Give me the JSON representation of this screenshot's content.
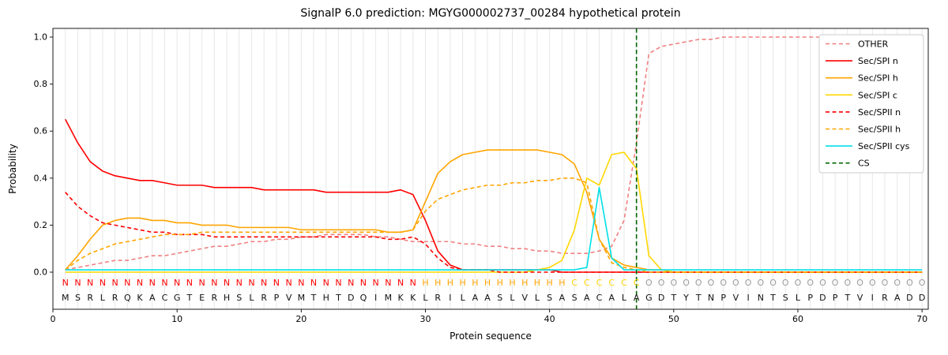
{
  "chart_data": {
    "type": "line",
    "title": "SignalP 6.0 prediction: MGYG000002737_00284 hypothetical protein",
    "xlabel": "Protein sequence",
    "ylabel": "Probability",
    "xlim": [
      0,
      70.5
    ],
    "ylim": [
      -0.16,
      1.04
    ],
    "x_start": 1,
    "x_ticks": [
      0,
      10,
      20,
      30,
      40,
      50,
      60,
      70
    ],
    "y_tick_labels": [
      "0.0",
      "0.2",
      "0.4",
      "0.6",
      "0.8",
      "1.0"
    ],
    "grid": "vertical-per-residue",
    "grid_color": "#e7e7e7",
    "legend_position": "upper right",
    "sequence": "MSRLRQKACGTERHSLRPVMTHTDQIMKKLRILAASLVLSASACALAGDTYTNPVINTSLPDPTVIRADD",
    "regions": "NNNNNNNNNNNNNNNNNNNNNNNNNNNNNHHHHHHHHHHHHCCCCCCOOOOOOOOOOOOOOOOOOOOOOO",
    "region_colors": {
      "N": "#ff0000",
      "H": "#ffa500",
      "C": "#ffd700",
      "O": "#9c9c9c"
    },
    "cs": {
      "label": "CS",
      "position": 47,
      "color": "#006400"
    },
    "series": [
      {
        "name": "OTHER",
        "color": "#f08080",
        "dash": true,
        "values": [
          0.01,
          0.02,
          0.03,
          0.04,
          0.05,
          0.05,
          0.06,
          0.07,
          0.07,
          0.08,
          0.09,
          0.1,
          0.11,
          0.11,
          0.12,
          0.13,
          0.13,
          0.14,
          0.14,
          0.15,
          0.15,
          0.16,
          0.16,
          0.16,
          0.16,
          0.15,
          0.15,
          0.14,
          0.13,
          0.13,
          0.13,
          0.13,
          0.12,
          0.12,
          0.11,
          0.11,
          0.1,
          0.1,
          0.09,
          0.09,
          0.08,
          0.08,
          0.08,
          0.09,
          0.11,
          0.22,
          0.55,
          0.93,
          0.96,
          0.97,
          0.98,
          0.99,
          0.99,
          1.0,
          1.0,
          1.0,
          1.0,
          1.0,
          1.0,
          1.0,
          1.0,
          1.0,
          1.0,
          1.0,
          1.0,
          1.0,
          1.0,
          1.0,
          1.0,
          1.0
        ]
      },
      {
        "name": "Sec/SPI n",
        "color": "#ff0000",
        "dash": false,
        "values": [
          0.65,
          0.55,
          0.47,
          0.43,
          0.41,
          0.4,
          0.39,
          0.39,
          0.38,
          0.37,
          0.37,
          0.37,
          0.36,
          0.36,
          0.36,
          0.36,
          0.35,
          0.35,
          0.35,
          0.35,
          0.35,
          0.34,
          0.34,
          0.34,
          0.34,
          0.34,
          0.34,
          0.35,
          0.33,
          0.22,
          0.09,
          0.03,
          0.01,
          0.01,
          0.01,
          0.01,
          0.01,
          0.01,
          0.01,
          0.01,
          0.0,
          0.0,
          0.0,
          0.0,
          0.0,
          0.0,
          0.0,
          0.0,
          0.0,
          0.0,
          0.0,
          0.0,
          0.0,
          0.0,
          0.0,
          0.0,
          0.0,
          0.0,
          0.0,
          0.0,
          0.0,
          0.0,
          0.0,
          0.0,
          0.0,
          0.0,
          0.0,
          0.0,
          0.0,
          0.0
        ]
      },
      {
        "name": "Sec/SPI h",
        "color": "#ffa500",
        "dash": false,
        "values": [
          0.01,
          0.07,
          0.14,
          0.2,
          0.22,
          0.23,
          0.23,
          0.22,
          0.22,
          0.21,
          0.21,
          0.2,
          0.2,
          0.2,
          0.19,
          0.19,
          0.19,
          0.19,
          0.19,
          0.18,
          0.18,
          0.18,
          0.18,
          0.18,
          0.18,
          0.18,
          0.17,
          0.17,
          0.18,
          0.3,
          0.42,
          0.47,
          0.5,
          0.51,
          0.52,
          0.52,
          0.52,
          0.52,
          0.52,
          0.51,
          0.5,
          0.46,
          0.34,
          0.14,
          0.06,
          0.03,
          0.02,
          0.01,
          0.01,
          0.0,
          0.0,
          0.0,
          0.0,
          0.0,
          0.0,
          0.0,
          0.0,
          0.0,
          0.0,
          0.0,
          0.0,
          0.0,
          0.0,
          0.0,
          0.0,
          0.0,
          0.0,
          0.0,
          0.0,
          0.0
        ]
      },
      {
        "name": "Sec/SPI c",
        "color": "#ffd700",
        "dash": false,
        "values": [
          0.0,
          0.0,
          0.0,
          0.0,
          0.0,
          0.0,
          0.0,
          0.0,
          0.0,
          0.0,
          0.0,
          0.0,
          0.0,
          0.0,
          0.0,
          0.0,
          0.0,
          0.0,
          0.0,
          0.0,
          0.0,
          0.0,
          0.0,
          0.0,
          0.0,
          0.0,
          0.0,
          0.0,
          0.0,
          0.0,
          0.0,
          0.0,
          0.0,
          0.0,
          0.0,
          0.0,
          0.0,
          0.0,
          0.01,
          0.02,
          0.05,
          0.18,
          0.4,
          0.37,
          0.5,
          0.51,
          0.44,
          0.07,
          0.01,
          0.0,
          0.0,
          0.0,
          0.0,
          0.0,
          0.0,
          0.0,
          0.0,
          0.0,
          0.0,
          0.0,
          0.0,
          0.0,
          0.0,
          0.0,
          0.0,
          0.0,
          0.0,
          0.0,
          0.0,
          0.0
        ]
      },
      {
        "name": "Sec/SPII n",
        "color": "#ff0000",
        "dash": true,
        "values": [
          0.34,
          0.28,
          0.24,
          0.21,
          0.2,
          0.19,
          0.18,
          0.17,
          0.17,
          0.16,
          0.16,
          0.16,
          0.15,
          0.15,
          0.15,
          0.15,
          0.15,
          0.15,
          0.15,
          0.15,
          0.15,
          0.15,
          0.15,
          0.15,
          0.15,
          0.15,
          0.14,
          0.14,
          0.15,
          0.12,
          0.06,
          0.02,
          0.01,
          0.01,
          0.01,
          0.0,
          0.0,
          0.0,
          0.0,
          0.0,
          0.0,
          0.0,
          0.0,
          0.0,
          0.0,
          0.0,
          0.0,
          0.0,
          0.0,
          0.0,
          0.0,
          0.0,
          0.0,
          0.0,
          0.0,
          0.0,
          0.0,
          0.0,
          0.0,
          0.0,
          0.0,
          0.0,
          0.0,
          0.0,
          0.0,
          0.0,
          0.0,
          0.0,
          0.0,
          0.0
        ]
      },
      {
        "name": "Sec/SPII h",
        "color": "#ffa500",
        "dash": true,
        "values": [
          0.01,
          0.05,
          0.08,
          0.1,
          0.12,
          0.13,
          0.14,
          0.15,
          0.16,
          0.16,
          0.16,
          0.17,
          0.17,
          0.17,
          0.17,
          0.17,
          0.17,
          0.17,
          0.17,
          0.17,
          0.17,
          0.17,
          0.17,
          0.17,
          0.17,
          0.17,
          0.17,
          0.17,
          0.18,
          0.26,
          0.31,
          0.33,
          0.35,
          0.36,
          0.37,
          0.37,
          0.38,
          0.38,
          0.39,
          0.39,
          0.4,
          0.4,
          0.38,
          0.14,
          0.04,
          0.02,
          0.01,
          0.0,
          0.0,
          0.0,
          0.0,
          0.0,
          0.0,
          0.0,
          0.0,
          0.0,
          0.0,
          0.0,
          0.0,
          0.0,
          0.0,
          0.0,
          0.0,
          0.0,
          0.0,
          0.0,
          0.0,
          0.0,
          0.0,
          0.0
        ]
      },
      {
        "name": "Sec/SPII cys",
        "color": "#00e0e8",
        "dash": false,
        "values": [
          0.01,
          0.01,
          0.01,
          0.01,
          0.01,
          0.01,
          0.01,
          0.01,
          0.01,
          0.01,
          0.01,
          0.01,
          0.01,
          0.01,
          0.01,
          0.01,
          0.01,
          0.01,
          0.01,
          0.01,
          0.01,
          0.01,
          0.01,
          0.01,
          0.01,
          0.01,
          0.01,
          0.01,
          0.01,
          0.01,
          0.01,
          0.01,
          0.01,
          0.01,
          0.01,
          0.01,
          0.01,
          0.01,
          0.01,
          0.01,
          0.01,
          0.01,
          0.02,
          0.36,
          0.06,
          0.01,
          0.01,
          0.01,
          0.01,
          0.01,
          0.01,
          0.01,
          0.01,
          0.01,
          0.01,
          0.01,
          0.01,
          0.01,
          0.01,
          0.01,
          0.01,
          0.01,
          0.01,
          0.01,
          0.01,
          0.01,
          0.01,
          0.01,
          0.01,
          0.01
        ]
      }
    ]
  }
}
